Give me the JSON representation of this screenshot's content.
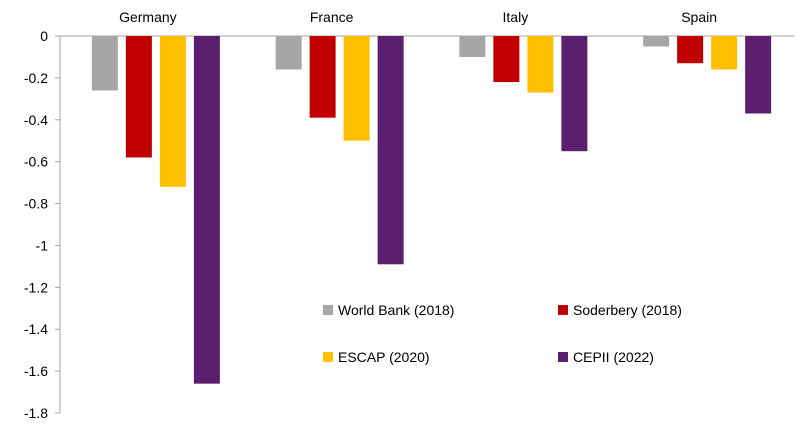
{
  "chart_data": {
    "type": "bar",
    "categories": [
      "Germany",
      "France",
      "Italy",
      "Spain"
    ],
    "series": [
      {
        "name": "World Bank (2018)",
        "color": "#a6a6a6",
        "values": [
          -0.26,
          -0.16,
          -0.1,
          -0.05
        ]
      },
      {
        "name": "Soderbery (2018)",
        "color": "#c00000",
        "values": [
          -0.58,
          -0.39,
          -0.22,
          -0.13
        ]
      },
      {
        "name": "ESCAP (2020)",
        "color": "#ffc000",
        "values": [
          -0.72,
          -0.5,
          -0.27,
          -0.16
        ]
      },
      {
        "name": "CEPII (2022)",
        "color": "#5b1f6e",
        "values": [
          -1.66,
          -1.09,
          -0.55,
          -0.37
        ]
      }
    ],
    "ylim": [
      -1.8,
      0
    ],
    "yticks": [
      "0",
      "-0.2",
      "-0.4",
      "-0.6",
      "-0.8",
      "-1",
      "-1.2",
      "-1.4",
      "-1.6",
      "-1.8"
    ],
    "category_labels_position": "top",
    "legend_position": "inside-bottom-right",
    "grid": false
  }
}
